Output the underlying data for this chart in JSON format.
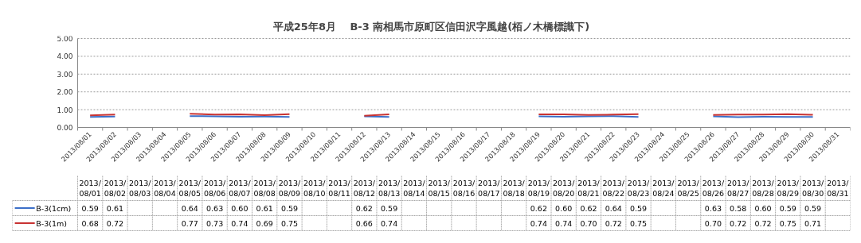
{
  "chart_data": {
    "type": "line",
    "title": "平成25年8月　 B-3 南相馬市原町区信田沢字風越(栢ノ木橋標識下)",
    "categories": [
      "2013/08/01",
      "2013/08/02",
      "2013/08/03",
      "2013/08/04",
      "2013/08/05",
      "2013/08/06",
      "2013/08/07",
      "2013/08/08",
      "2013/08/09",
      "2013/08/10",
      "2013/08/11",
      "2013/08/12",
      "2013/08/13",
      "2013/08/14",
      "2013/08/15",
      "2013/08/16",
      "2013/08/17",
      "2013/08/18",
      "2013/08/19",
      "2013/08/20",
      "2013/08/21",
      "2013/08/22",
      "2013/08/23",
      "2013/08/24",
      "2013/08/25",
      "2013/08/26",
      "2013/08/27",
      "2013/08/28",
      "2013/08/29",
      "2013/08/30",
      "2013/08/31"
    ],
    "series": [
      {
        "name": "B-3(1cm)",
        "color": "#3c6fc8",
        "values": [
          0.59,
          0.61,
          null,
          null,
          0.64,
          0.63,
          0.6,
          0.61,
          0.59,
          null,
          null,
          0.62,
          0.59,
          null,
          null,
          null,
          null,
          null,
          0.62,
          0.6,
          0.62,
          0.64,
          0.59,
          null,
          null,
          0.63,
          0.58,
          0.6,
          0.59,
          0.59,
          null
        ],
        "value_labels": [
          "0.59",
          "0.61",
          null,
          null,
          "0.64",
          "0.63",
          "0.60",
          "0.61",
          "0.59",
          null,
          null,
          "0.62",
          "0.59",
          null,
          null,
          null,
          null,
          null,
          "0.62",
          "0.60",
          "0.62",
          "0.64",
          "0.59",
          null,
          null,
          "0.63",
          "0.58",
          "0.60",
          "0.59",
          "0.59",
          null
        ]
      },
      {
        "name": "B-3(1m)",
        "color": "#c83232",
        "values": [
          0.68,
          0.72,
          null,
          null,
          0.77,
          0.73,
          0.74,
          0.69,
          0.75,
          null,
          null,
          0.66,
          0.74,
          null,
          null,
          null,
          null,
          null,
          0.74,
          0.74,
          0.7,
          0.72,
          0.75,
          null,
          null,
          0.7,
          0.72,
          0.72,
          0.75,
          0.71,
          null
        ],
        "value_labels": [
          "0.68",
          "0.72",
          null,
          null,
          "0.77",
          "0.73",
          "0.74",
          "0.69",
          "0.75",
          null,
          null,
          "0.66",
          "0.74",
          null,
          null,
          null,
          null,
          null,
          "0.74",
          "0.74",
          "0.70",
          "0.72",
          "0.75",
          null,
          null,
          "0.70",
          "0.72",
          "0.72",
          "0.75",
          "0.71",
          null
        ]
      }
    ],
    "ylim": [
      0,
      5
    ],
    "yticks": [
      {
        "value": 0,
        "label": "0.00"
      },
      {
        "value": 1,
        "label": "1.00"
      },
      {
        "value": 2,
        "label": "2.00"
      },
      {
        "value": 3,
        "label": "3.00"
      },
      {
        "value": 4,
        "label": "4.00"
      },
      {
        "value": 5,
        "label": "5.00"
      }
    ],
    "grid": "y",
    "legend": "bottom",
    "marker": "none",
    "line_style": "solid"
  }
}
